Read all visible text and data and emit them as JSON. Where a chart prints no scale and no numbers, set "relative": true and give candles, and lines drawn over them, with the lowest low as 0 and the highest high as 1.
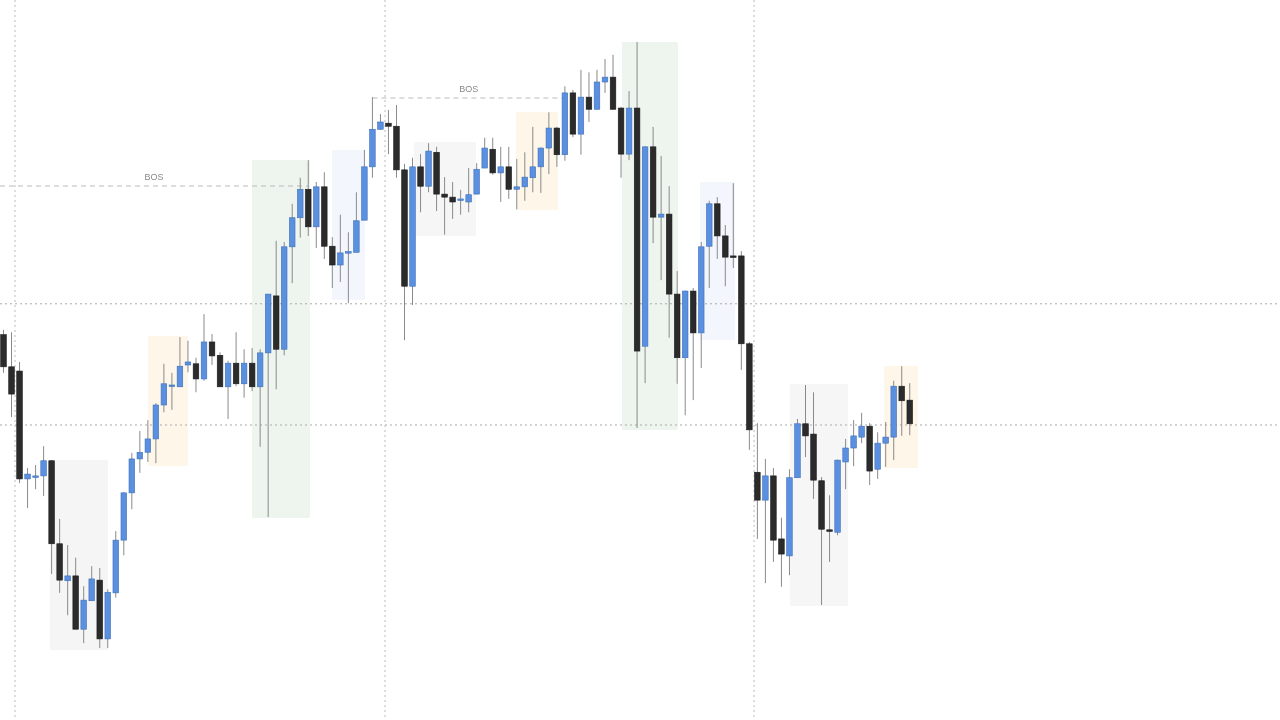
{
  "chart_data": {
    "type": "candlestick",
    "relative": true,
    "categories": [
      null,
      null,
      null,
      null,
      null,
      null,
      null,
      null,
      null,
      null,
      null,
      null,
      null,
      null,
      null,
      null,
      null,
      null,
      null,
      null,
      null,
      null,
      null,
      null,
      null,
      null,
      null,
      null,
      null,
      null,
      null,
      null,
      null,
      null,
      null,
      null,
      null,
      null,
      null,
      null,
      null,
      null,
      null,
      null,
      null,
      null,
      null,
      null,
      null,
      null,
      null,
      null,
      null,
      null,
      null,
      null,
      null,
      null,
      null,
      null,
      null,
      null,
      null,
      null,
      null,
      null,
      null,
      null,
      null,
      null,
      null,
      null,
      null,
      null,
      null,
      null,
      null,
      null,
      null,
      null,
      null,
      null,
      null,
      null,
      null,
      null,
      null,
      null,
      null,
      null,
      null,
      null,
      null,
      null,
      null,
      null,
      null,
      null,
      null,
      null,
      null,
      null,
      null,
      null,
      null,
      null,
      null,
      null,
      null,
      null,
      null,
      null,
      null,
      null
    ],
    "ohlc": [
      [
        0.517,
        0.525,
        0.454,
        0.464
      ],
      [
        0.464,
        0.521,
        0.381,
        0.419
      ],
      [
        0.457,
        0.472,
        0.272,
        0.279
      ],
      [
        0.279,
        0.297,
        0.231,
        0.287
      ],
      [
        0.282,
        0.302,
        0.262,
        0.284
      ],
      [
        0.284,
        0.333,
        0.251,
        0.309
      ],
      [
        0.309,
        0.31,
        0.122,
        0.172
      ],
      [
        0.172,
        0.213,
        0.091,
        0.112
      ],
      [
        0.111,
        0.17,
        0.054,
        0.119
      ],
      [
        0.119,
        0.149,
        0.031,
        0.031
      ],
      [
        0.031,
        0.102,
        0.008,
        0.079
      ],
      [
        0.078,
        0.135,
        0.078,
        0.114
      ],
      [
        0.112,
        0.132,
        0,
        0.015
      ],
      [
        0.015,
        0.097,
        0,
        0.092
      ],
      [
        0.091,
        0.193,
        0.083,
        0.178
      ],
      [
        0.178,
        0.257,
        0.153,
        0.256
      ],
      [
        0.256,
        0.322,
        0.229,
        0.312
      ],
      [
        0.312,
        0.358,
        0.289,
        0.323
      ],
      [
        0.323,
        0.376,
        0.307,
        0.345
      ],
      [
        0.345,
        0.404,
        0.305,
        0.401
      ],
      [
        0.401,
        0.469,
        0.389,
        0.436
      ],
      [
        0.432,
        0.454,
        0.393,
        0.434
      ],
      [
        0.431,
        0.513,
        0.431,
        0.465
      ],
      [
        0.467,
        0.507,
        0.455,
        0.472
      ],
      [
        0.469,
        0.479,
        0.422,
        0.444
      ],
      [
        0.444,
        0.551,
        0.441,
        0.505
      ],
      [
        0.505,
        0.518,
        0.467,
        0.482
      ],
      [
        0.483,
        0.488,
        0.431,
        0.431
      ],
      [
        0.431,
        0.474,
        0.378,
        0.47
      ],
      [
        0.47,
        0.521,
        0.432,
        0.436
      ],
      [
        0.436,
        0.493,
        0.413,
        0.47
      ],
      [
        0.47,
        0.495,
        0.424,
        0.431
      ],
      [
        0.431,
        0.493,
        0.332,
        0.487
      ],
      [
        0.487,
        0.584,
        0.216,
        0.584
      ],
      [
        0.581,
        0.672,
        0.427,
        0.493
      ],
      [
        0.493,
        0.67,
        0.483,
        0.662
      ],
      [
        0.662,
        0.733,
        0.602,
        0.71
      ],
      [
        0.71,
        0.776,
        0.677,
        0.757
      ],
      [
        0.757,
        0.805,
        0.68,
        0.695
      ],
      [
        0.695,
        0.769,
        0.66,
        0.761
      ],
      [
        0.761,
        0.785,
        0.642,
        0.663
      ],
      [
        0.663,
        0.678,
        0.594,
        0.632
      ],
      [
        0.632,
        0.715,
        0.604,
        0.652
      ],
      [
        0.653,
        0.686,
        0.569,
        0.654
      ],
      [
        0.653,
        0.752,
        0.653,
        0.705
      ],
      [
        0.706,
        0.822,
        0.706,
        0.794
      ],
      [
        0.794,
        0.909,
        0.776,
        0.856
      ],
      [
        0.856,
        0.881,
        0.855,
        0.868
      ],
      [
        0.866,
        0.888,
        0.815,
        0.861
      ],
      [
        0.861,
        0.896,
        0.776,
        0.789
      ],
      [
        0.789,
        0.799,
        0.508,
        0.597
      ],
      [
        0.597,
        0.809,
        0.566,
        0.794
      ],
      [
        0.794,
        0.815,
        0.719,
        0.762
      ],
      [
        0.762,
        0.833,
        0.752,
        0.82
      ],
      [
        0.818,
        0.827,
        0.721,
        0.749
      ],
      [
        0.749,
        0.777,
        0.682,
        0.744
      ],
      [
        0.744,
        0.769,
        0.708,
        0.736
      ],
      [
        0.739,
        0.756,
        0.715,
        0.741
      ],
      [
        0.736,
        0.792,
        0.719,
        0.748
      ],
      [
        0.749,
        0.8,
        0.749,
        0.79
      ],
      [
        0.792,
        0.842,
        0.792,
        0.825
      ],
      [
        0.823,
        0.842,
        0.781,
        0.784
      ],
      [
        0.784,
        0.827,
        0.736,
        0.794
      ],
      [
        0.794,
        0.827,
        0.741,
        0.757
      ],
      [
        0.757,
        0.807,
        0.724,
        0.761
      ],
      [
        0.761,
        0.818,
        0.738,
        0.777
      ],
      [
        0.776,
        0.86,
        0.752,
        0.794
      ],
      [
        0.794,
        0.826,
        0.751,
        0.825
      ],
      [
        0.825,
        0.884,
        0.782,
        0.858
      ],
      [
        0.858,
        0.86,
        0.794,
        0.814
      ],
      [
        0.814,
        0.927,
        0.804,
        0.916
      ],
      [
        0.916,
        0.921,
        0.843,
        0.848
      ],
      [
        0.848,
        0.954,
        0.814,
        0.909
      ],
      [
        0.909,
        0.95,
        0.868,
        0.889
      ],
      [
        0.889,
        0.954,
        0.889,
        0.934
      ],
      [
        0.934,
        0.972,
        0.916,
        0.942
      ],
      [
        0.942,
        0.979,
        0.888,
        0.889
      ],
      [
        0.891,
        0.893,
        0.776,
        0.815
      ],
      [
        0.815,
        0.919,
        0.805,
        0.891
      ],
      [
        0.891,
        1,
        0.363,
        0.49
      ],
      [
        0.498,
        0.828,
        0.437,
        0.827
      ],
      [
        0.827,
        0.86,
        0.668,
        0.711
      ],
      [
        0.711,
        0.812,
        0.607,
        0.716
      ],
      [
        0.716,
        0.762,
        0.512,
        0.584
      ],
      [
        0.584,
        0.622,
        0.436,
        0.479
      ],
      [
        0.479,
        0.59,
        0.384,
        0.589
      ],
      [
        0.589,
        0.594,
        0.409,
        0.52
      ],
      [
        0.52,
        0.67,
        0.462,
        0.662
      ],
      [
        0.663,
        0.738,
        0.594,
        0.733
      ],
      [
        0.733,
        0.744,
        0.642,
        0.68
      ],
      [
        0.68,
        0.698,
        0.597,
        0.645
      ],
      [
        0.647,
        0.767,
        0.627,
        0.645
      ],
      [
        0.647,
        0.655,
        0.459,
        0.502
      ],
      [
        0.502,
        0.505,
        0.327,
        0.36
      ],
      [
        0.29,
        0.371,
        0.18,
        0.244
      ],
      [
        0.244,
        0.312,
        0.107,
        0.284
      ],
      [
        0.284,
        0.297,
        0.142,
        0.178
      ],
      [
        0.18,
        0.215,
        0.101,
        0.155
      ],
      [
        0.152,
        0.295,
        0.12,
        0.281
      ],
      [
        0.281,
        0.378,
        0.281,
        0.37
      ],
      [
        0.37,
        0.434,
        0.315,
        0.35
      ],
      [
        0.353,
        0.422,
        0.246,
        0.277
      ],
      [
        0.276,
        0.282,
        0.071,
        0.196
      ],
      [
        0.195,
        0.252,
        0.142,
        0.194
      ],
      [
        0.191,
        0.311,
        0.186,
        0.31
      ],
      [
        0.307,
        0.345,
        0.262,
        0.33
      ],
      [
        0.33,
        0.376,
        0.3,
        0.35
      ],
      [
        0.348,
        0.388,
        0.338,
        0.366
      ],
      [
        0.366,
        0.371,
        0.269,
        0.292
      ],
      [
        0.295,
        0.356,
        0.279,
        0.338
      ],
      [
        0.338,
        0.373,
        0.299,
        0.348
      ],
      [
        0.348,
        0.441,
        0.31,
        0.432
      ],
      [
        0.432,
        0.465,
        0.35,
        0.408
      ],
      [
        0.409,
        0.437,
        0.351,
        0.37
      ]
    ],
    "ref_lines": [
      {
        "axis": "y",
        "value": 0.568,
        "line_style": "dotted"
      },
      {
        "axis": "y",
        "value": 0.368,
        "line_style": "dotted"
      }
    ],
    "annotations": [
      "BOS",
      "BOS"
    ]
  }
}
